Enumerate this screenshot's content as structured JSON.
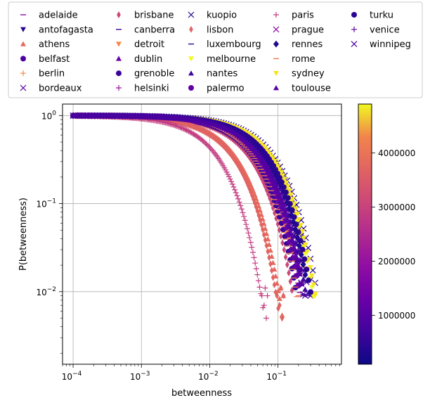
{
  "chart_data": {
    "type": "scatter",
    "xlabel": "betweenness",
    "ylabel": "P(betweenness)",
    "xscale": "log",
    "yscale": "log",
    "xlim": [
      7e-05,
      0.85
    ],
    "ylim": [
      0.0015,
      1.35
    ],
    "grid": true,
    "legend_position": "top",
    "x_ticks": [
      {
        "value": 0.0001,
        "base": "10",
        "exp": "−4"
      },
      {
        "value": 0.001,
        "base": "10",
        "exp": "−3"
      },
      {
        "value": 0.01,
        "base": "10",
        "exp": "−2"
      },
      {
        "value": 0.1,
        "base": "10",
        "exp": "−1"
      }
    ],
    "y_ticks": [
      {
        "value": 0.01,
        "base": "10",
        "exp": "−2"
      },
      {
        "value": 0.1,
        "base": "10",
        "exp": "−1"
      },
      {
        "value": 1,
        "base": "10",
        "exp": "0"
      }
    ],
    "colorbar": {
      "colormap": "plasma",
      "range": [
        100000,
        4900000
      ],
      "ticks": [
        {
          "value": 1000000,
          "label": "1000000"
        },
        {
          "value": 2000000,
          "label": "2000000"
        },
        {
          "value": 3000000,
          "label": "3000000"
        },
        {
          "value": 4000000,
          "label": "4000000"
        }
      ]
    },
    "series": [
      {
        "name": "adelaide",
        "marker": "hline",
        "color": "#8f0da4",
        "x_max": 0.22,
        "decay": 0.045,
        "n": 120
      },
      {
        "name": "antofagasta",
        "marker": "triangle-down",
        "color": "#2c0594",
        "x_max": 0.3,
        "decay": 0.07,
        "n": 110
      },
      {
        "name": "athens",
        "marker": "triangle-up",
        "color": "#e56a5d",
        "x_max": 0.12,
        "decay": 0.022,
        "n": 140
      },
      {
        "name": "belfast",
        "marker": "circle",
        "color": "#4c02a1",
        "x_max": 0.2,
        "decay": 0.05,
        "n": 110
      },
      {
        "name": "berlin",
        "marker": "plus",
        "color": "#f48849",
        "x_max": 0.25,
        "decay": 0.06,
        "n": 130
      },
      {
        "name": "bordeaux",
        "marker": "x",
        "color": "#5c01a6",
        "x_max": 0.3,
        "decay": 0.06,
        "n": 100
      },
      {
        "name": "brisbane",
        "marker": "diamond-thin",
        "color": "#cc4778",
        "x_max": 0.16,
        "decay": 0.035,
        "n": 120
      },
      {
        "name": "canberra",
        "marker": "hline",
        "color": "#3d049b",
        "x_max": 0.25,
        "decay": 0.05,
        "n": 100
      },
      {
        "name": "detroit",
        "marker": "triangle-down",
        "color": "#f48849",
        "x_max": 0.2,
        "decay": 0.045,
        "n": 120
      },
      {
        "name": "dublin",
        "marker": "triangle-up",
        "color": "#6a00a8",
        "x_max": 0.22,
        "decay": 0.05,
        "n": 110
      },
      {
        "name": "grenoble",
        "marker": "circle",
        "color": "#3a049a",
        "x_max": 0.18,
        "decay": 0.04,
        "n": 110
      },
      {
        "name": "helsinki",
        "marker": "plus",
        "color": "#9c179e",
        "x_max": 0.2,
        "decay": 0.045,
        "n": 110
      },
      {
        "name": "kuopio",
        "marker": "x",
        "color": "#240691",
        "x_max": 0.35,
        "decay": 0.08,
        "n": 90
      },
      {
        "name": "lisbon",
        "marker": "diamond-thin",
        "color": "#e16462",
        "x_max": 0.12,
        "decay": 0.02,
        "n": 140
      },
      {
        "name": "luxembourg",
        "marker": "hline",
        "color": "#1f0c8f",
        "x_max": 0.3,
        "decay": 0.06,
        "n": 100
      },
      {
        "name": "melbourne",
        "marker": "triangle-down",
        "color": "#f0f921",
        "x_max": 0.35,
        "decay": 0.07,
        "n": 130
      },
      {
        "name": "nantes",
        "marker": "triangle-up",
        "color": "#3e049c",
        "x_max": 0.25,
        "decay": 0.055,
        "n": 110
      },
      {
        "name": "palermo",
        "marker": "circle",
        "color": "#6001a7",
        "x_max": 0.2,
        "decay": 0.045,
        "n": 110
      },
      {
        "name": "paris",
        "marker": "plus",
        "color": "#c33d80",
        "x_max": 0.07,
        "decay": 0.012,
        "n": 150
      },
      {
        "name": "prague",
        "marker": "x",
        "color": "#8d0ba4",
        "x_max": 0.22,
        "decay": 0.05,
        "n": 110
      },
      {
        "name": "rennes",
        "marker": "diamond",
        "color": "#1e0b8d",
        "x_max": 0.25,
        "decay": 0.06,
        "n": 100
      },
      {
        "name": "rome",
        "marker": "hline",
        "color": "#ec7855",
        "x_max": 0.2,
        "decay": 0.04,
        "n": 120
      },
      {
        "name": "sydney",
        "marker": "triangle-down",
        "color": "#f8e325",
        "x_max": 0.35,
        "decay": 0.075,
        "n": 130
      },
      {
        "name": "toulouse",
        "marker": "triangle-up",
        "color": "#5a01a5",
        "x_max": 0.22,
        "decay": 0.05,
        "n": 110
      },
      {
        "name": "turku",
        "marker": "circle",
        "color": "#2a0593",
        "x_max": 0.3,
        "decay": 0.065,
        "n": 100
      },
      {
        "name": "venice",
        "marker": "plus",
        "color": "#5b02a5",
        "x_max": 0.22,
        "decay": 0.05,
        "n": 100
      },
      {
        "name": "winnipeg",
        "marker": "x",
        "color": "#4b03a1",
        "x_max": 0.25,
        "decay": 0.05,
        "n": 100
      }
    ]
  }
}
